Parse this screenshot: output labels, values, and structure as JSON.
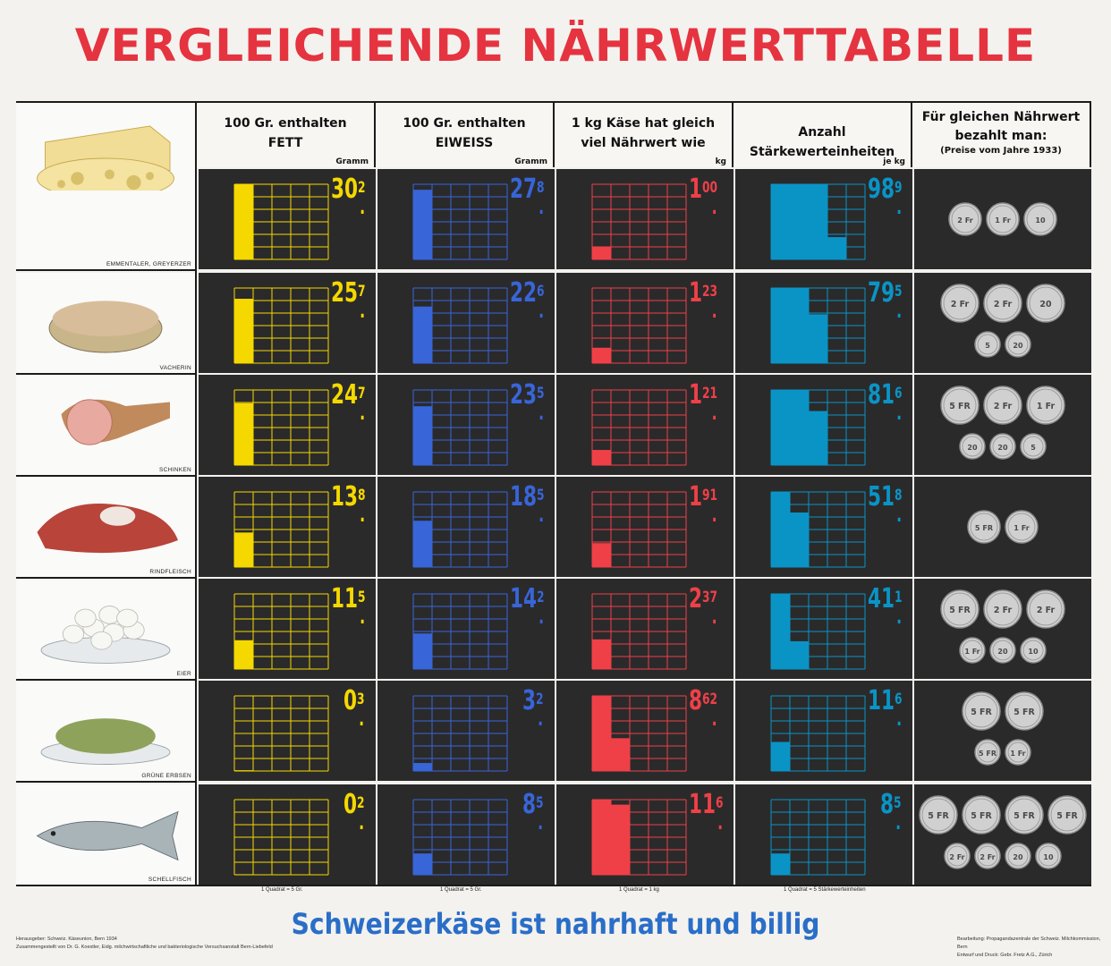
{
  "title": "VERGLEICHENDE  NÄHRWERTTABELLE",
  "headers": [
    {
      "l1": "100 Gr. enthalten",
      "l2": "FETT",
      "unit": "Gramm"
    },
    {
      "l1": "100 Gr. enthalten",
      "l2": "EIWEISS",
      "unit": "Gramm"
    },
    {
      "l1": "1 kg Käse hat gleich",
      "l2": "viel Nährwert wie",
      "unit": "kg"
    },
    {
      "l1": "Anzahl Stärkewerteinheiten",
      "l2": "",
      "unit": "je kg"
    },
    {
      "l1": "Für gleichen Nährwert",
      "l2": "bezahlt man:",
      "l3": "(Preise vom Jahre 1933)"
    }
  ],
  "colors": {
    "fett": "#f5d800",
    "eiweiss": "#3865d8",
    "kg": "#ef4048",
    "staerke": "#0a94c6"
  },
  "chart_data": {
    "type": "table",
    "title": "VERGLEICHENDE NÄHRWERTTABELLE",
    "units": {
      "fett": "Gramm",
      "eiweiss": "Gramm",
      "kg": "kg",
      "staerke": "je kg"
    },
    "rows": [
      {
        "food": "EMMENTALER, GREYERZER",
        "fett": {
          "int": "30",
          "dec": "2"
        },
        "eiweiss": {
          "int": "27",
          "dec": "8"
        },
        "kg": {
          "int": "1",
          "dec": "00"
        },
        "staerke": {
          "int": "98",
          "dec": "9"
        },
        "coins": [
          "2 Fr",
          "1 Fr",
          "10"
        ]
      },
      {
        "food": "VACHERIN",
        "fett": {
          "int": "25",
          "dec": "7"
        },
        "eiweiss": {
          "int": "22",
          "dec": "6"
        },
        "kg": {
          "int": "1",
          "dec": "23"
        },
        "staerke": {
          "int": "79",
          "dec": "5"
        },
        "coins": [
          "2 Fr",
          "2 Fr",
          "20",
          "5",
          "20"
        ]
      },
      {
        "food": "SCHINKEN",
        "fett": {
          "int": "24",
          "dec": "7"
        },
        "eiweiss": {
          "int": "23",
          "dec": "5"
        },
        "kg": {
          "int": "1",
          "dec": "21"
        },
        "staerke": {
          "int": "81",
          "dec": "6"
        },
        "coins": [
          "5 FR",
          "2 Fr",
          "1 Fr",
          "20",
          "20",
          "5"
        ]
      },
      {
        "food": "RINDFLEISCH",
        "fett": {
          "int": "13",
          "dec": "8"
        },
        "eiweiss": {
          "int": "18",
          "dec": "5"
        },
        "kg": {
          "int": "1",
          "dec": "91"
        },
        "staerke": {
          "int": "51",
          "dec": "8"
        },
        "coins": [
          "5 FR",
          "1 Fr"
        ]
      },
      {
        "food": "EIER",
        "fett": {
          "int": "11",
          "dec": "5"
        },
        "eiweiss": {
          "int": "14",
          "dec": "2"
        },
        "kg": {
          "int": "2",
          "dec": "37"
        },
        "staerke": {
          "int": "41",
          "dec": "1"
        },
        "coins": [
          "5 FR",
          "2 Fr",
          "2 Fr",
          "1 Fr",
          "20",
          "10"
        ]
      },
      {
        "food": "GRÜNE ERBSEN",
        "fett": {
          "int": "0",
          "dec": "3"
        },
        "eiweiss": {
          "int": "3",
          "dec": "2"
        },
        "kg": {
          "int": "8",
          "dec": "62"
        },
        "staerke": {
          "int": "11",
          "dec": "6"
        },
        "coins": [
          "5 FR",
          "5 FR",
          "5 FR",
          "1 Fr"
        ]
      },
      {
        "food": "SCHELLFISCH",
        "fett": {
          "int": "0",
          "dec": "2"
        },
        "eiweiss": {
          "int": "8",
          "dec": "5"
        },
        "kg": {
          "int": "11",
          "dec": "6"
        },
        "staerke": {
          "int": "8",
          "dec": "5"
        },
        "coins": [
          "5 FR",
          "5 FR",
          "5 FR",
          "5 FR",
          "2 Fr",
          "2 Fr",
          "20",
          "10"
        ]
      }
    ],
    "scale_notes": [
      "1 Quadrat = 5 Gr.",
      "1 Quadrat = 5 Gr.",
      "1 Quadrat = 1 kg",
      "1 Quadrat = 5 Stärkewerteinheiten"
    ]
  },
  "footer": {
    "slogan": "Schweizerkäse ist nahrhaft und billig",
    "left": [
      "Herausgeber: Schweiz. Käseunion, Bern 1934",
      "Zusammengestellt von Dr. G. Koestler, Eidg. milchwirtschaftliche und bakteriologische Versuchsanstalt Bern-Liebefeld"
    ],
    "right": [
      "Bearbeitung: Propagandazentrale der Schweiz. Milchkommission, Bern",
      "Entwurf und Druck: Gebr. Fretz A.G., Zürich"
    ]
  }
}
